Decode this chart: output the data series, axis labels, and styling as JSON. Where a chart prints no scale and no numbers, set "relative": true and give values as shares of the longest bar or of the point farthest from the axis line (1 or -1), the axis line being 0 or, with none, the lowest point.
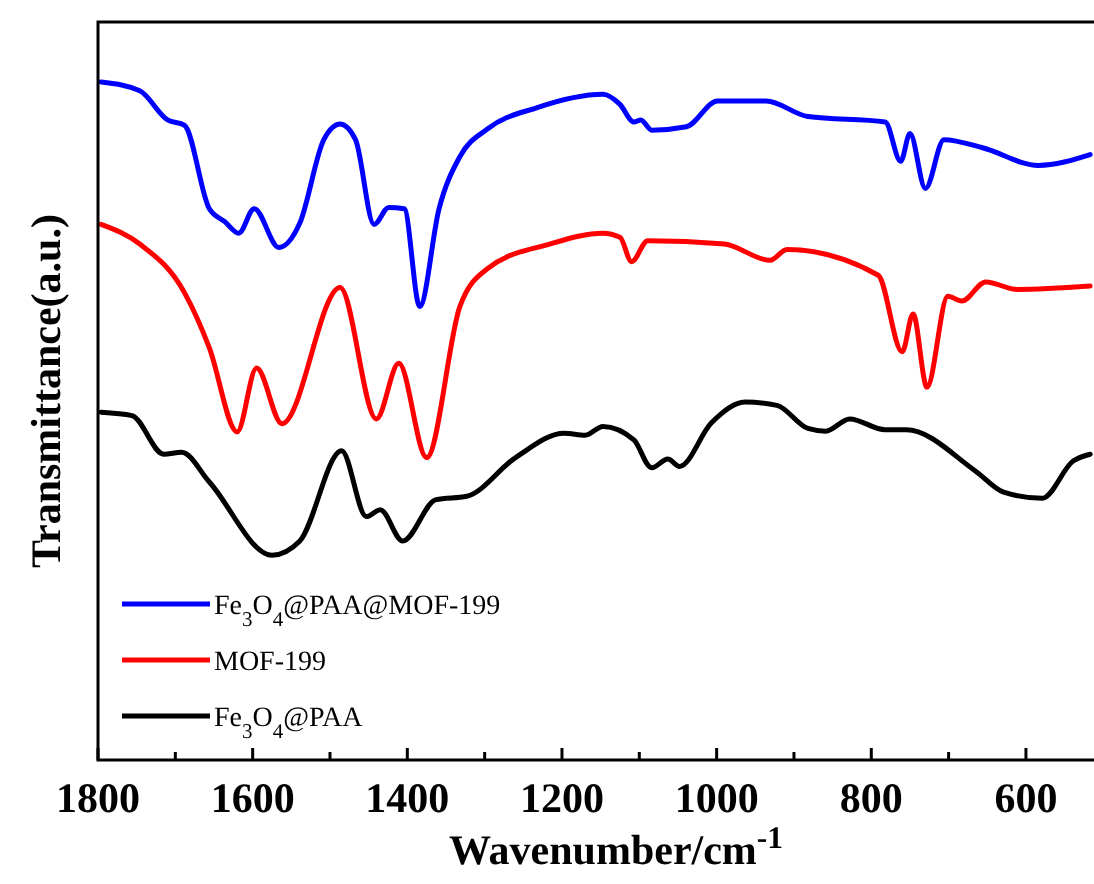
{
  "chart_data": {
    "type": "line",
    "relative": true,
    "xlabel": "Wavenumber/cm$^{-1}$",
    "ylabel": "Transmittance(a.u.)",
    "xlim": [
      1800,
      512
    ],
    "xticks": [
      1800,
      {
        "value": 1700,
        "label": null
      },
      1600,
      {
        "value": 1500,
        "label": null
      },
      1400,
      {
        "value": 1300,
        "label": null
      },
      1200,
      {
        "value": 1100,
        "label": null
      },
      1000,
      {
        "value": 900,
        "label": null
      },
      800,
      {
        "value": 700,
        "label": null
      },
      600
    ],
    "legend": "bottom left",
    "grid": false,
    "line_style": "solid",
    "series": [
      {
        "name": "Fe$_{3}$O$_{4}$@PAA@MOF-199",
        "color": "#0000ff",
        "x": [
          1796,
          1746,
          1710,
          1688,
          1656,
          1636,
          1618,
          1598,
          1566,
          1539,
          1508,
          1487,
          1467,
          1443,
          1424,
          1404,
          1384,
          1359,
          1332,
          1296,
          1233,
          1147,
          1125,
          1107,
          1098,
          1084,
          1039,
          999,
          936,
          882,
          782,
          762,
          750,
          730,
          706,
          656,
          584,
          517
        ],
        "values": [
          1.0,
          0.987,
          0.944,
          0.936,
          0.813,
          0.794,
          0.777,
          0.813,
          0.756,
          0.792,
          0.915,
          0.938,
          0.915,
          0.79,
          0.815,
          0.813,
          0.669,
          0.813,
          0.89,
          0.931,
          0.962,
          0.982,
          0.967,
          0.941,
          0.944,
          0.929,
          0.934,
          0.972,
          0.972,
          0.949,
          0.941,
          0.883,
          0.924,
          0.843,
          0.915,
          0.903,
          0.877,
          0.893
        ]
      },
      {
        "name": "MOF-199",
        "color": "#ff0000",
        "x": [
          1796,
          1746,
          1688,
          1656,
          1620,
          1595,
          1562,
          1487,
          1440,
          1411,
          1375,
          1332,
          1296,
          1216,
          1147,
          1125,
          1110,
          1089,
          990,
          931,
          909,
          791,
          760,
          746,
          728,
          701,
          683,
          652,
          611,
          517
        ],
        "values": [
          0.79,
          0.761,
          0.689,
          0.608,
          0.484,
          0.578,
          0.496,
          0.697,
          0.503,
          0.585,
          0.446,
          0.669,
          0.725,
          0.761,
          0.777,
          0.771,
          0.735,
          0.766,
          0.761,
          0.737,
          0.753,
          0.715,
          0.602,
          0.658,
          0.55,
          0.684,
          0.677,
          0.705,
          0.694,
          0.699
        ]
      },
      {
        "name": "Fe$_{3}$O$_{4}$@PAA",
        "color": "#000000",
        "x": [
          1796,
          1756,
          1715,
          1692,
          1656,
          1575,
          1539,
          1485,
          1453,
          1435,
          1406,
          1363,
          1323,
          1260,
          1197,
          1170,
          1147,
          1107,
          1084,
          1063,
          1048,
          1007,
          963,
          922,
          882,
          859,
          828,
          782,
          755,
          665,
          629,
          579,
          539,
          517
        ],
        "values": [
          0.513,
          0.508,
          0.451,
          0.454,
          0.41,
          0.302,
          0.323,
          0.456,
          0.359,
          0.369,
          0.323,
          0.384,
          0.389,
          0.446,
          0.482,
          0.479,
          0.492,
          0.472,
          0.431,
          0.444,
          0.433,
          0.497,
          0.528,
          0.523,
          0.489,
          0.485,
          0.503,
          0.487,
          0.487,
          0.426,
          0.395,
          0.386,
          0.441,
          0.451
        ]
      }
    ]
  }
}
